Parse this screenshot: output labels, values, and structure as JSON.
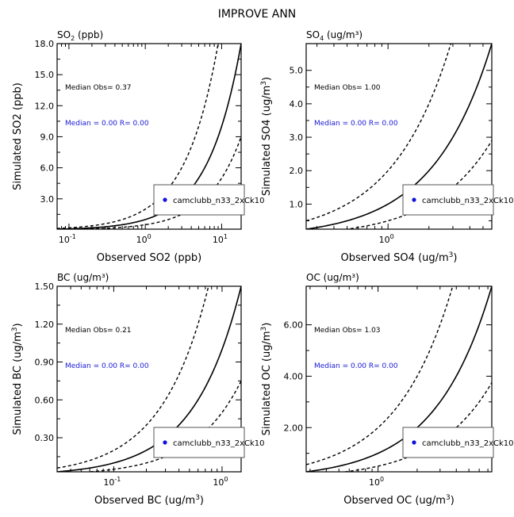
{
  "figure_title": "IMPROVE ANN",
  "legend_label": "camclubb_n33_2xCk10",
  "colors": {
    "median_text": "#1a1ad6",
    "marker": "#1010e0",
    "axes": "#000000"
  },
  "chart_data": [
    {
      "type": "scatter",
      "species": "SO2",
      "title_parts": {
        "base": "SO",
        "sub": "2",
        "rest": " (ppb)"
      },
      "xlabel_parts": {
        "pre": "Observed SO2 (ppb)",
        "sup": "",
        "post": ""
      },
      "ylabel_parts": {
        "pre": "Simulated SO2 (ppb)",
        "sup": "",
        "post": ""
      },
      "xlim": [
        0.07,
        18.0
      ],
      "ylim": [
        0.07,
        18.0
      ],
      "xscale": "log",
      "yscale": "linear",
      "xticks": [
        {
          "v": 0.1,
          "m": "-1"
        },
        {
          "v": 1,
          "m": "0"
        },
        {
          "v": 10,
          "m": "1"
        }
      ],
      "yticks": [
        3.0,
        6.0,
        9.0,
        12.0,
        15.0,
        18.0
      ],
      "ytick_labels": [
        "3.0",
        "6.0",
        "9.0",
        "12.0",
        "15.0",
        "18.0"
      ],
      "median_obs_label": "Median Obs=  0.37",
      "median_sim_label": "Median = 0.00 R= 0.00",
      "lines": [
        {
          "style": "solid",
          "factor": 1
        },
        {
          "style": "dashed",
          "factor": 2
        },
        {
          "style": "dashed",
          "factor": 0.5
        }
      ],
      "points": []
    },
    {
      "type": "scatter",
      "species": "SO4",
      "title_parts": {
        "base": "SO",
        "sub": "4",
        "rest": " (ug/m³)"
      },
      "xlabel_parts": {
        "pre": "Observed SO4 (ug/m",
        "sup": "3",
        "post": ")"
      },
      "ylabel_parts": {
        "pre": "Simulated SO4 (ug/m",
        "sup": "3",
        "post": ")"
      },
      "xlim": [
        0.25,
        5.8
      ],
      "ylim": [
        0.25,
        5.8
      ],
      "xscale": "log",
      "yscale": "linear",
      "xticks": [
        {
          "v": 1,
          "m": "0"
        }
      ],
      "yticks": [
        1.0,
        2.0,
        3.0,
        4.0,
        5.0
      ],
      "ytick_labels": [
        "1.0",
        "2.0",
        "3.0",
        "4.0",
        "5.0"
      ],
      "median_obs_label": "Median Obs=  1.00",
      "median_sim_label": "Median = 0.00 R= 0.00",
      "lines": [
        {
          "style": "solid",
          "factor": 1
        },
        {
          "style": "dashed",
          "factor": 2
        },
        {
          "style": "dashed",
          "factor": 0.5
        }
      ],
      "points": []
    },
    {
      "type": "scatter",
      "species": "BC",
      "title_parts": {
        "base": "BC (ug/m",
        "sub": "",
        "rest": "³)"
      },
      "xlabel_parts": {
        "pre": "Observed BC (ug/m",
        "sup": "3",
        "post": ")"
      },
      "ylabel_parts": {
        "pre": "Simulated BC (ug/m",
        "sup": "3",
        "post": ")"
      },
      "xlim": [
        0.03,
        1.5
      ],
      "ylim": [
        0.03,
        1.5
      ],
      "xscale": "log",
      "yscale": "linear",
      "xticks": [
        {
          "v": 0.1,
          "m": "-1"
        },
        {
          "v": 1,
          "m": "0"
        }
      ],
      "yticks": [
        0.3,
        0.6,
        0.9,
        1.2,
        1.5
      ],
      "ytick_labels": [
        "0.30",
        "0.60",
        "0.90",
        "1.20",
        "1.50"
      ],
      "median_obs_label": "Median Obs=  0.21",
      "median_sim_label": "Median = 0.00 R= 0.00",
      "lines": [
        {
          "style": "solid",
          "factor": 1
        },
        {
          "style": "dashed",
          "factor": 2
        },
        {
          "style": "dashed",
          "factor": 0.5
        }
      ],
      "points": []
    },
    {
      "type": "scatter",
      "species": "OC",
      "title_parts": {
        "base": "OC (ug/m",
        "sub": "",
        "rest": "³)"
      },
      "xlabel_parts": {
        "pre": "Observed OC (ug/m",
        "sup": "3",
        "post": ")"
      },
      "ylabel_parts": {
        "pre": "Simulated OC (ug/m",
        "sup": "3",
        "post": ")"
      },
      "xlim": [
        0.28,
        7.5
      ],
      "ylim": [
        0.28,
        7.5
      ],
      "xscale": "log",
      "yscale": "linear",
      "xticks": [
        {
          "v": 1,
          "m": "0"
        }
      ],
      "yticks": [
        2.0,
        4.0,
        6.0
      ],
      "ytick_labels": [
        "2.00",
        "4.00",
        "6.00"
      ],
      "median_obs_label": "Median Obs=  1.03",
      "median_sim_label": "Median = 0.00 R= 0.00",
      "lines": [
        {
          "style": "solid",
          "factor": 1
        },
        {
          "style": "dashed",
          "factor": 2
        },
        {
          "style": "dashed",
          "factor": 0.5
        }
      ],
      "points": []
    }
  ]
}
